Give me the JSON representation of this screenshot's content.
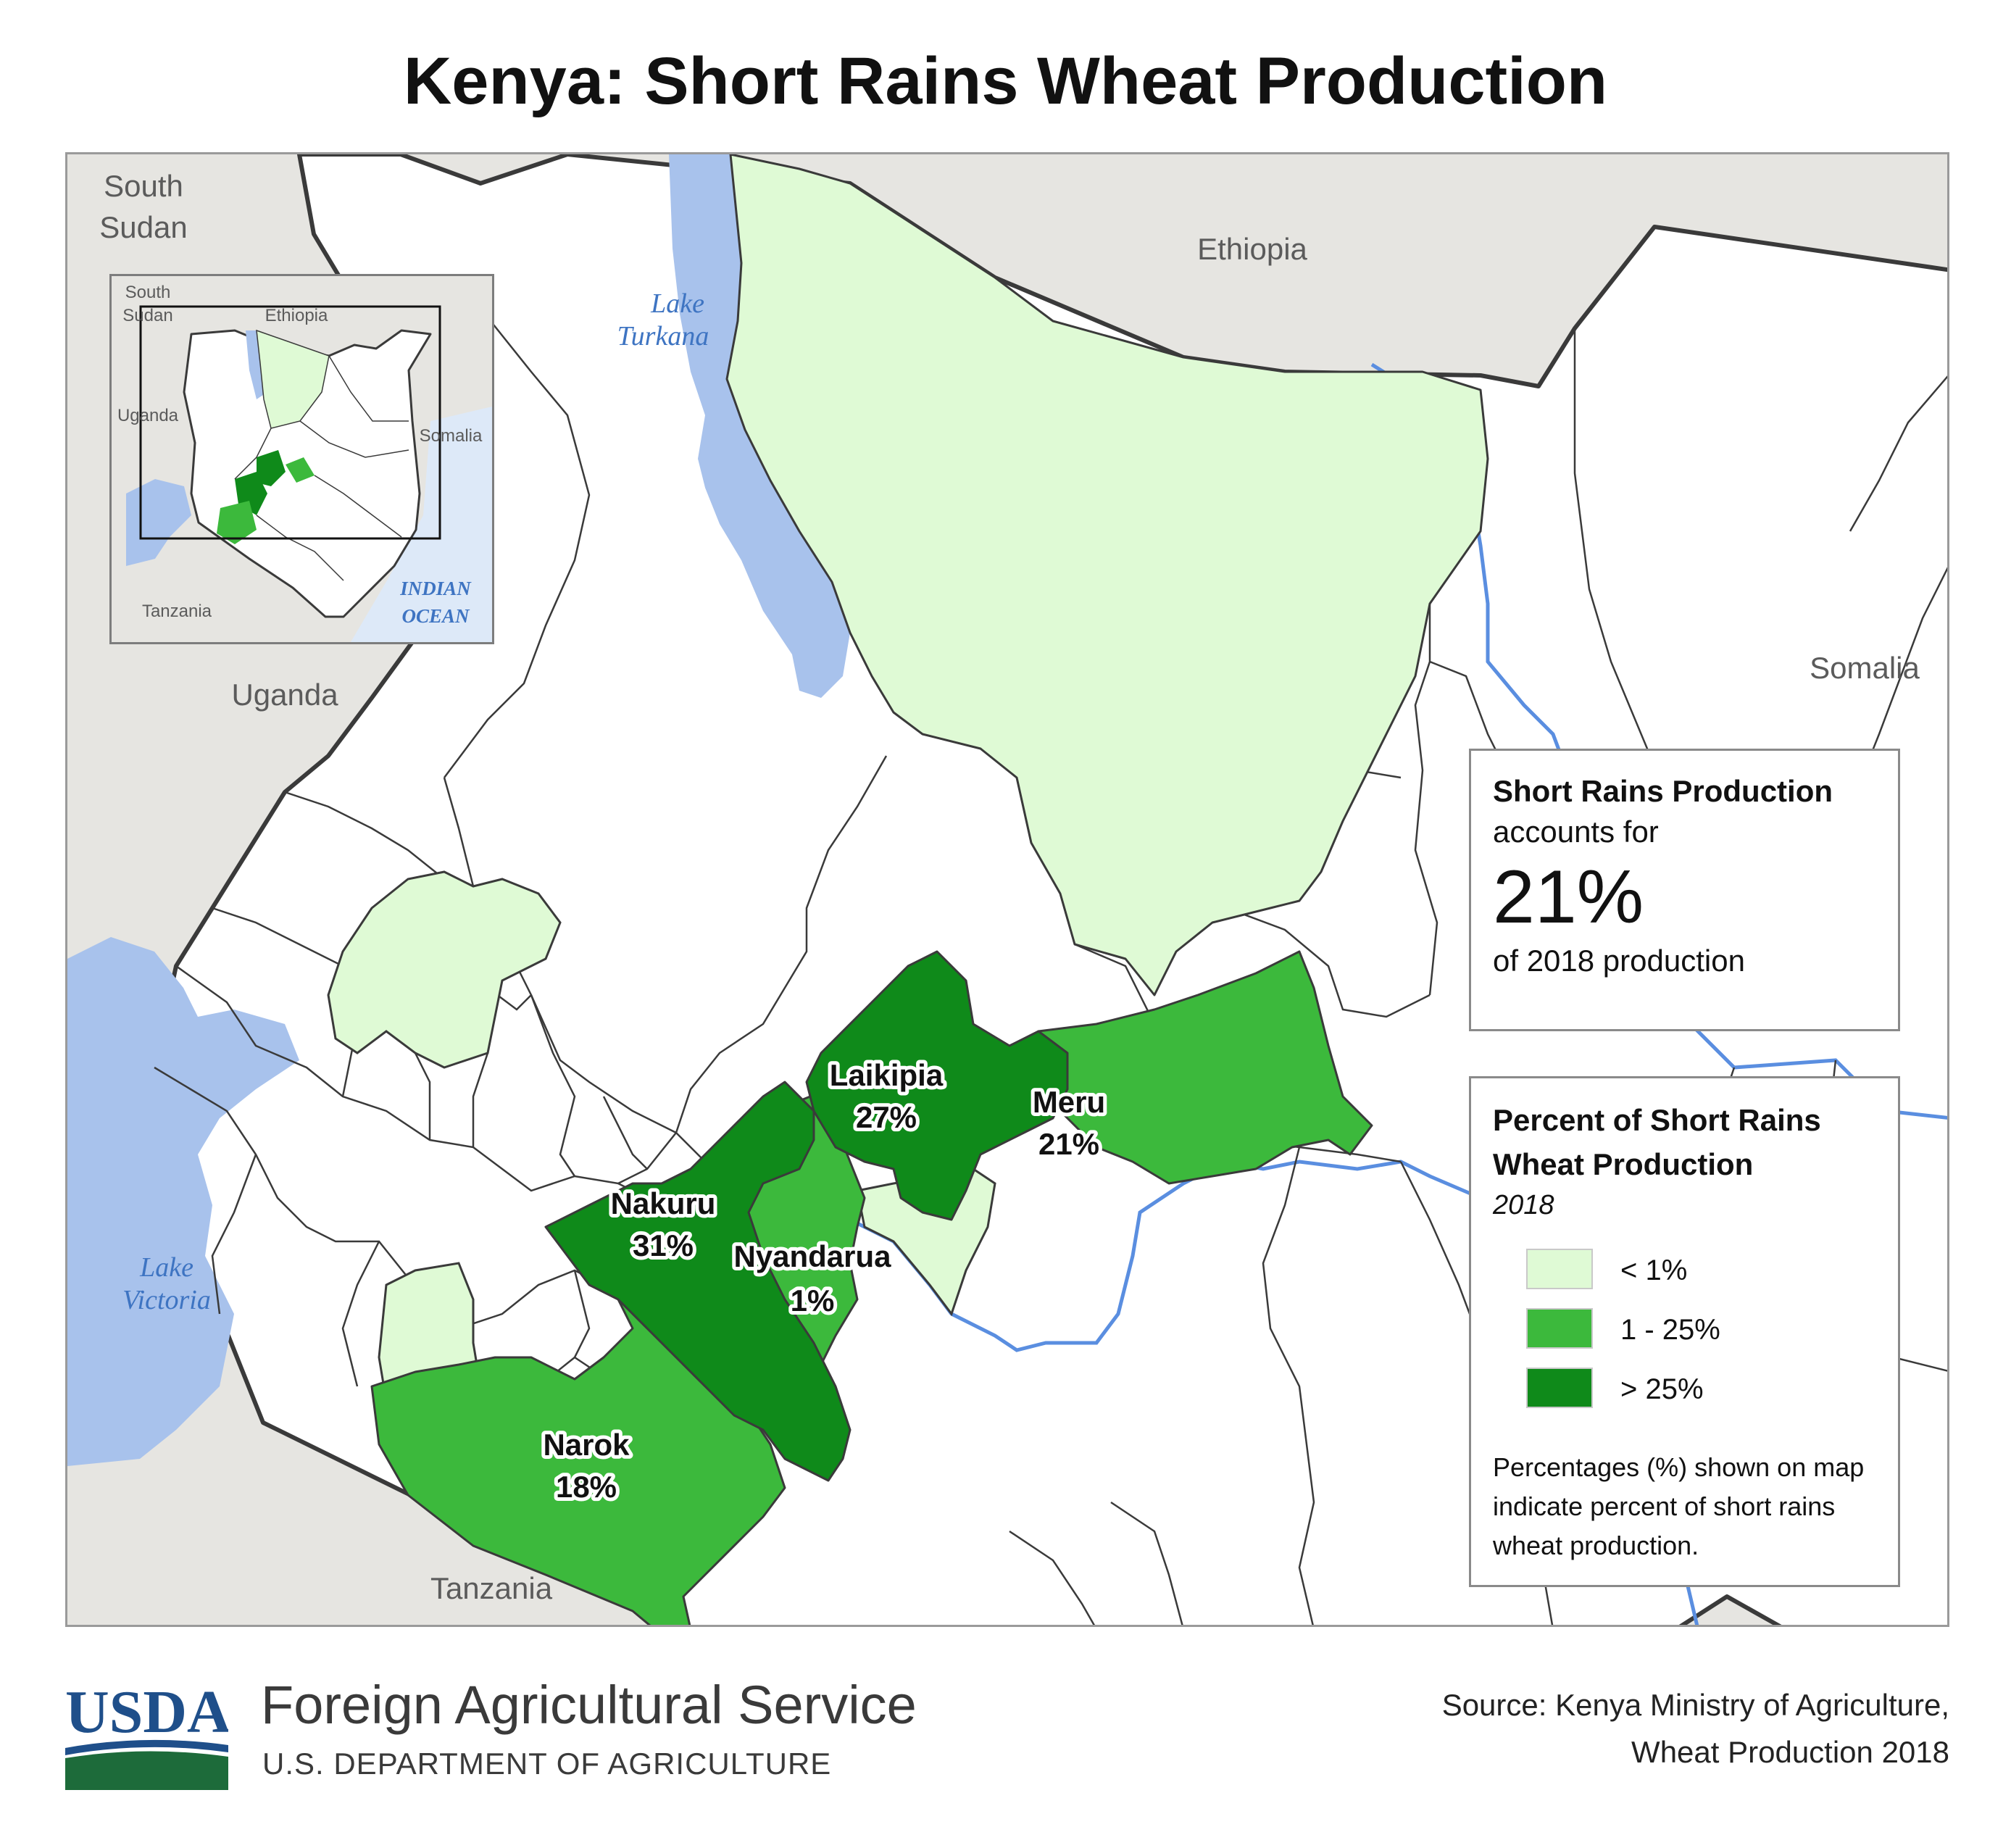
{
  "title": "Kenya: Short Rains Wheat Production",
  "map": {
    "countries": {
      "south_sudan": [
        "South",
        "Sudan"
      ],
      "ethiopia": "Ethiopia",
      "uganda": "Uganda",
      "somalia": "Somalia",
      "tanzania": "Tanzania"
    },
    "water": {
      "lake_turkana": [
        "Lake",
        "Turkana"
      ],
      "lake_victoria": [
        "Lake",
        "Victoria"
      ]
    },
    "counties": [
      {
        "name": "Laikipia",
        "value": "27%",
        "class": "> 25%"
      },
      {
        "name": "Nakuru",
        "value": "31%",
        "class": "> 25%"
      },
      {
        "name": "Meru",
        "value": "21%",
        "class": "1 - 25%"
      },
      {
        "name": "Nyandarua",
        "value": "1%",
        "class": "1 - 25%"
      },
      {
        "name": "Narok",
        "value": "18%",
        "class": "1 - 25%"
      }
    ],
    "colors": {
      "water": "#a8c2ec",
      "river": "#5a8ee0",
      "neighbor_land": "#e6e5e1",
      "kenya_land": "#ffffff",
      "low": "#dffad5",
      "mid": "#3cb93c",
      "high": "#0f8a1a",
      "ocean": "#dde9f8"
    }
  },
  "inset": {
    "countries": {
      "south_sudan": [
        "South",
        "Sudan"
      ],
      "ethiopia": "Ethiopia",
      "uganda": "Uganda",
      "somalia": "Somalia",
      "tanzania": "Tanzania"
    },
    "ocean": [
      "INDIAN",
      "OCEAN"
    ]
  },
  "summary": {
    "title": "Short Rains Production",
    "line1": "accounts for",
    "value": "21%",
    "line2": "of 2018 production"
  },
  "legend": {
    "title": "Percent of Short Rains Wheat Production",
    "year": "2018",
    "items": [
      {
        "label": "< 1%",
        "color": "#dffad5"
      },
      {
        "label": "1 - 25%",
        "color": "#3cb93c"
      },
      {
        "label": "> 25%",
        "color": "#0f8a1a"
      }
    ],
    "note": "Percentages (%) shown on map indicate percent of short rains wheat production."
  },
  "footer": {
    "logo_text": "USDA",
    "agency": "Foreign Agricultural Service",
    "department": "U.S. DEPARTMENT OF AGRICULTURE",
    "source": [
      "Source: Kenya Ministry of Agriculture,",
      "Wheat Production 2018"
    ]
  }
}
